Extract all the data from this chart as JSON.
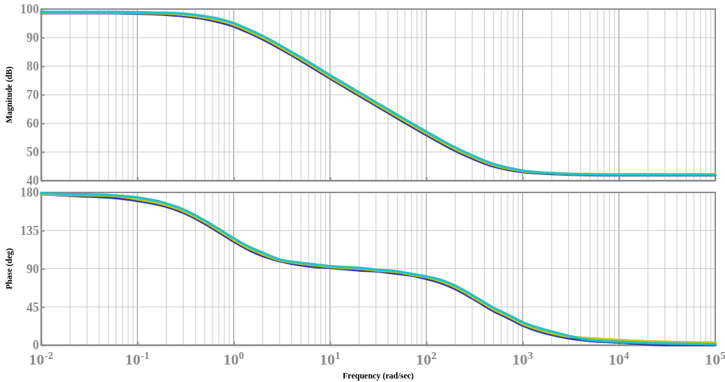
{
  "chart_data": [
    {
      "type": "line",
      "ylabel": "Magnitude (dB)",
      "log": "x",
      "grid": true,
      "tick_labels": "y",
      "line_style": "solid",
      "x": [
        0.01,
        0.02,
        0.05,
        0.1,
        0.2,
        0.3,
        0.5,
        0.7,
        1,
        1.5,
        2,
        3,
        5,
        7,
        10,
        20,
        30,
        50,
        70,
        100,
        150,
        200,
        300,
        500,
        700,
        1000,
        2000,
        3000,
        5000,
        10000,
        30000,
        100000
      ],
      "xlim": [
        0.01,
        100000
      ],
      "xticks": [
        0.01,
        0.1,
        1,
        10,
        100,
        1000,
        10000,
        100000
      ],
      "ylim": [
        40,
        100
      ],
      "yticks": [
        40,
        50,
        60,
        70,
        80,
        90,
        100
      ],
      "series": [
        {
          "color": "#2e3d9c",
          "values": [
            98.6,
            98.6,
            98.6,
            98.4,
            98.0,
            97.5,
            96.5,
            95.4,
            93.9,
            91.4,
            89.4,
            86.2,
            81.9,
            78.9,
            75.7,
            69.7,
            66.2,
            61.8,
            58.9,
            55.9,
            52.6,
            50.4,
            47.7,
            44.9,
            43.8,
            43.0,
            42.3,
            42.1,
            41.9,
            41.8,
            41.8,
            41.8
          ]
        },
        {
          "color": "#c9c61a",
          "values": [
            98.8,
            98.8,
            98.8,
            98.7,
            98.4,
            98.0,
            97.0,
            96.0,
            94.5,
            92.0,
            90.0,
            86.8,
            82.5,
            79.5,
            76.3,
            70.3,
            66.8,
            62.4,
            59.5,
            56.5,
            53.2,
            51.0,
            48.3,
            45.4,
            44.2,
            43.3,
            42.6,
            42.4,
            42.3,
            42.2,
            42.2,
            42.2
          ]
        },
        {
          "color": "#25c1c1",
          "values": [
            99.0,
            99.0,
            99.0,
            98.9,
            98.7,
            98.4,
            97.5,
            96.6,
            95.1,
            92.6,
            90.6,
            87.4,
            83.1,
            80.1,
            76.9,
            70.9,
            67.4,
            63.0,
            60.1,
            57.1,
            53.8,
            51.6,
            48.8,
            45.8,
            44.5,
            43.5,
            42.6,
            42.3,
            42.1,
            42.0,
            42.0,
            42.0
          ]
        }
      ]
    },
    {
      "type": "line",
      "ylabel": "Phase (deg)",
      "xlabel": "Frequency  (rad/sec)",
      "log": "x",
      "grid": true,
      "line_style": "solid",
      "x": [
        0.01,
        0.02,
        0.05,
        0.1,
        0.2,
        0.3,
        0.5,
        0.7,
        1,
        1.5,
        2,
        3,
        5,
        7,
        10,
        20,
        30,
        50,
        70,
        100,
        150,
        200,
        300,
        500,
        700,
        1000,
        2000,
        3000,
        5000,
        10000,
        30000,
        100000
      ],
      "xlim": [
        0.01,
        100000
      ],
      "xticks": [
        {
          "value": 0.01,
          "label": "10$^{-2}$"
        },
        {
          "value": 0.1,
          "label": "10$^{-1}$"
        },
        {
          "value": 1,
          "label": "10$^{0}$"
        },
        {
          "value": 10,
          "label": "10$^{1}$"
        },
        {
          "value": 100,
          "label": "10$^{2}$"
        },
        {
          "value": 1000,
          "label": "10$^{3}$"
        },
        {
          "value": 10000,
          "label": "10$^{4}$"
        },
        {
          "value": 100000,
          "label": "10$^{5}$"
        }
      ],
      "ylim": [
        0,
        180
      ],
      "yticks": [
        0,
        45,
        90,
        135,
        180
      ],
      "series": [
        {
          "color": "#2e3d9c",
          "values": [
            178,
            176,
            174,
            170,
            163,
            156,
            143,
            133,
            122,
            111,
            105,
            99,
            94,
            92,
            91,
            88,
            87,
            84,
            82,
            78,
            72,
            66,
            55,
            40,
            32,
            23,
            12,
            8,
            5,
            3,
            0,
            0
          ]
        },
        {
          "color": "#c9c61a",
          "values": [
            178,
            177,
            176,
            172,
            165,
            158,
            145,
            135,
            124,
            113,
            107,
            100,
            96,
            94,
            92,
            90,
            88,
            86,
            83,
            80,
            74,
            68,
            57,
            42,
            34,
            25,
            14,
            10,
            8,
            6,
            4,
            3
          ]
        },
        {
          "color": "#25c1c1",
          "values": [
            179,
            178,
            177,
            174,
            167,
            160,
            147,
            137,
            126,
            115,
            109,
            101,
            97,
            95,
            93,
            91,
            89,
            87,
            84,
            81,
            76,
            70,
            59,
            44,
            36,
            27,
            16,
            11,
            6,
            4,
            2,
            1
          ]
        }
      ]
    }
  ]
}
